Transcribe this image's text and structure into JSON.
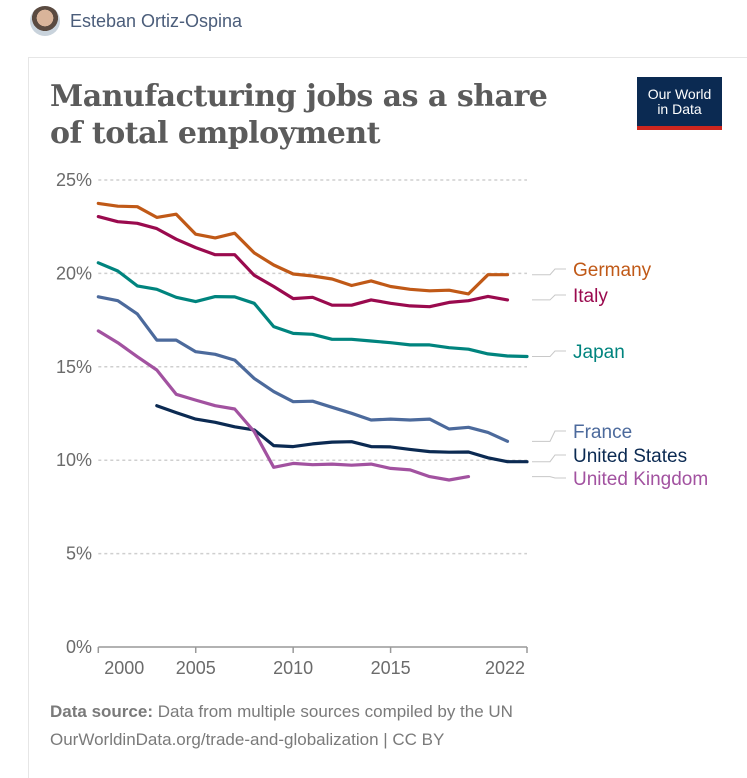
{
  "author": {
    "name": "Esteban Ortiz-Ospina"
  },
  "logo": {
    "line1": "Our World",
    "line2": "in Data"
  },
  "footer": {
    "source_label": "Data source:",
    "source_text": " Data from multiple sources compiled by the UN",
    "link": "OurWorldinData.org/trade-and-globalization | CC BY"
  },
  "chart_data": {
    "type": "line",
    "title": "Manufacturing jobs as a share of total employment",
    "xlabel": "",
    "ylabel": "",
    "ylim": [
      0,
      25
    ],
    "xlim": [
      2000,
      2022
    ],
    "yticks": [
      0,
      5,
      10,
      15,
      20,
      25
    ],
    "ytick_labels": [
      "0%",
      "5%",
      "10%",
      "15%",
      "20%",
      "25%"
    ],
    "xticks": [
      2000,
      2005,
      2010,
      2015,
      2022
    ],
    "xtick_labels": [
      "2000",
      "2005",
      "2010",
      "2015",
      "2022"
    ],
    "grid": true,
    "legend": "inline-right",
    "series": [
      {
        "name": "Germany",
        "color": "#c05917",
        "start": 2000,
        "values": [
          23.75,
          23.6,
          23.57,
          23.0,
          23.17,
          22.1,
          21.9,
          22.15,
          21.1,
          20.45,
          19.97,
          19.86,
          19.7,
          19.35,
          19.6,
          19.3,
          19.15,
          19.07,
          19.1,
          18.9,
          19.93,
          19.93
        ]
      },
      {
        "name": "Italy",
        "color": "#9a0a4e",
        "start": 2000,
        "values": [
          23.04,
          22.77,
          22.68,
          22.4,
          21.83,
          21.38,
          21.0,
          21.0,
          19.9,
          19.3,
          18.65,
          18.72,
          18.3,
          18.3,
          18.58,
          18.4,
          18.26,
          18.22,
          18.45,
          18.54,
          18.77,
          18.58
        ]
      },
      {
        "name": "Japan",
        "color": "#00847e",
        "start": 2000,
        "values": [
          20.57,
          20.13,
          19.33,
          19.15,
          18.72,
          18.49,
          18.76,
          18.74,
          18.4,
          17.15,
          16.79,
          16.74,
          16.47,
          16.47,
          16.38,
          16.29,
          16.17,
          16.17,
          16.02,
          15.94,
          15.69,
          15.58,
          15.55
        ]
      },
      {
        "name": "France",
        "color": "#4c6a9c",
        "start": 2000,
        "values": [
          18.75,
          18.54,
          17.83,
          16.43,
          16.43,
          15.81,
          15.67,
          15.36,
          14.38,
          13.67,
          13.13,
          13.16,
          12.83,
          12.51,
          12.15,
          12.2,
          12.15,
          12.2,
          11.67,
          11.76,
          11.49,
          11.01
        ]
      },
      {
        "name": "United States",
        "color": "#0b2a52",
        "start": 2003,
        "values": [
          12.92,
          12.55,
          12.2,
          12.03,
          11.79,
          11.62,
          10.78,
          10.73,
          10.87,
          10.97,
          10.99,
          10.73,
          10.71,
          10.58,
          10.46,
          10.43,
          10.44,
          10.13,
          9.92,
          9.92
        ]
      },
      {
        "name": "United Kingdom",
        "color": "#a252a0",
        "start": 2000,
        "values": [
          16.92,
          16.29,
          15.54,
          14.83,
          13.53,
          13.22,
          12.92,
          12.74,
          11.53,
          9.62,
          9.83,
          9.76,
          9.79,
          9.73,
          9.79,
          9.56,
          9.48,
          9.12,
          8.94,
          9.12
        ]
      }
    ]
  }
}
